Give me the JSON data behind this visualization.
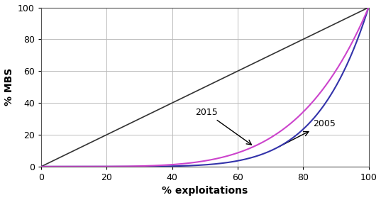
{
  "title": "",
  "xlabel": "% exploitations",
  "ylabel": "% MBS",
  "xlim": [
    0,
    100
  ],
  "ylim": [
    0,
    100
  ],
  "xticks": [
    0,
    20,
    40,
    60,
    80,
    100
  ],
  "yticks": [
    0,
    20,
    40,
    60,
    80,
    100
  ],
  "equality_line_color": "#333333",
  "curve_2005_color": "#3333aa",
  "curve_2015_color": "#cc44cc",
  "background_color": "#ffffff",
  "grid_color": "#bbbbbb",
  "figsize": [
    5.37,
    2.82
  ],
  "dpi": 100,
  "power_2005": 6.5,
  "power_2015": 4.8
}
